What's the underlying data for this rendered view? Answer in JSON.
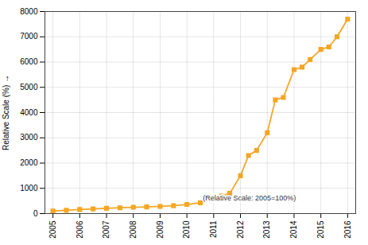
{
  "chart_data": {
    "type": "line",
    "ylabel": "Relative Scale (%)",
    "x": [
      2005,
      2005.5,
      2006,
      2006.5,
      2007,
      2007.5,
      2008,
      2008.5,
      2009,
      2009.5,
      2010,
      2010.5,
      2011,
      2011.3,
      2011.6,
      2012,
      2012.3,
      2012.6,
      2013,
      2013.3,
      2013.6,
      2014,
      2014.3,
      2014.6,
      2015,
      2015.3,
      2015.6,
      2016
    ],
    "values": [
      100,
      130,
      160,
      185,
      210,
      230,
      250,
      265,
      285,
      310,
      360,
      430,
      600,
      700,
      800,
      1500,
      2300,
      2500,
      3200,
      4500,
      4600,
      5700,
      5800,
      6100,
      6500,
      6600,
      7000,
      7700
    ],
    "color": "#F5A623",
    "marker": "square",
    "annotations": [
      {
        "text": "(Relative Scale: 2005=100%)",
        "x": 2010.6,
        "y": 530
      }
    ],
    "xlim": [
      2004.7,
      2016.3
    ],
    "xticks": [
      2005,
      2006,
      2007,
      2008,
      2009,
      2010,
      2011,
      2012,
      2013,
      2014,
      2015,
      2016
    ],
    "ylim": [
      0,
      8000
    ],
    "yticks": [
      0,
      1000,
      2000,
      3000,
      4000,
      5000,
      6000,
      7000,
      8000
    ],
    "grid": true
  }
}
